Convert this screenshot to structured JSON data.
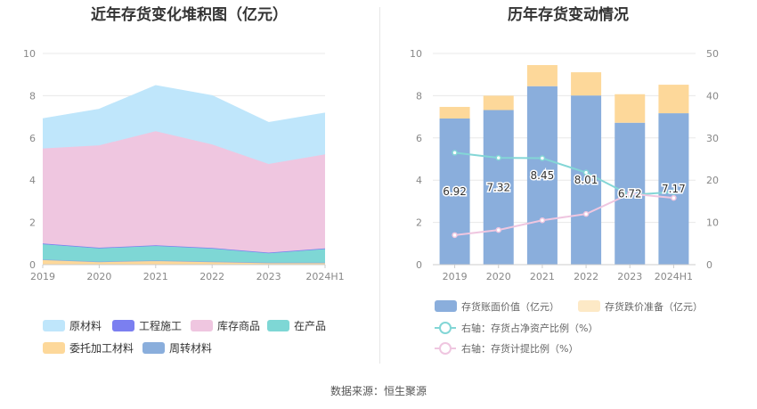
{
  "titles": {
    "left": "近年存货变化堆积图（亿元）",
    "right": "历年存货变动情况"
  },
  "source": "数据来源：恒生聚源",
  "chart_data": [
    {
      "type": "area",
      "stacked": true,
      "title": "近年存货变化堆积图（亿元）",
      "categories": [
        "2019",
        "2020",
        "2021",
        "2022",
        "2023",
        "2024H1"
      ],
      "ylim": [
        0,
        10
      ],
      "yticks": [
        "0",
        "2",
        "4",
        "6",
        "8",
        "10"
      ],
      "grid": true,
      "legend_position": "bottom",
      "series": [
        {
          "name": "委托加工材料",
          "color": "#fdd89a",
          "values": [
            0.25,
            0.15,
            0.2,
            0.15,
            0.1,
            0.1
          ]
        },
        {
          "name": "周转材料",
          "color": "#8aaedc",
          "values": [
            0,
            0,
            0,
            0,
            0,
            0
          ]
        },
        {
          "name": "在产品",
          "color": "#7ed7d5",
          "values": [
            0.72,
            0.63,
            0.7,
            0.62,
            0.45,
            0.65
          ]
        },
        {
          "name": "工程施工",
          "color": "#7b7ff0",
          "values": [
            0.03,
            0.02,
            0.02,
            0.02,
            0.02,
            0.02
          ]
        },
        {
          "name": "库存商品",
          "color": "#efc6e0",
          "values": [
            4.5,
            4.85,
            5.4,
            4.9,
            4.2,
            4.45
          ]
        },
        {
          "name": "原材料",
          "color": "#bfe6fb",
          "values": [
            1.4,
            1.7,
            2.15,
            2.3,
            1.95,
            1.95
          ]
        }
      ],
      "legend_order": [
        "原材料",
        "工程施工",
        "库存商品",
        "在产品",
        "委托加工材料",
        "周转材料"
      ]
    },
    {
      "type": "bar",
      "stacked": true,
      "title": "历年存货变动情况",
      "categories": [
        "2019",
        "2020",
        "2021",
        "2022",
        "2023",
        "2024H1"
      ],
      "ylim": [
        0,
        10
      ],
      "yticks": [
        "0",
        "2",
        "4",
        "6",
        "8",
        "10"
      ],
      "y2lim": [
        0,
        50
      ],
      "y2ticks": [
        "0",
        "10",
        "20",
        "30",
        "40",
        "50"
      ],
      "grid": true,
      "legend_position": "bottom",
      "series": [
        {
          "name": "存货账面价值（亿元）",
          "axis": "left",
          "color": "#8aaedc",
          "values": [
            6.92,
            7.32,
            8.45,
            8.01,
            6.72,
            7.17
          ],
          "labels": [
            "6.92",
            "7.32",
            "8.45",
            "8.01",
            "6.72",
            "7.17"
          ]
        },
        {
          "name": "存货跌价准备（亿元）",
          "axis": "left",
          "color": "#fdd89a",
          "values": [
            0.55,
            0.68,
            1.0,
            1.1,
            1.35,
            1.35
          ]
        },
        {
          "name": "右轴：存货占净资产比例（%）",
          "axis": "right",
          "type": "line",
          "color": "#83d6d6",
          "values": [
            26.5,
            25.3,
            25.2,
            21.8,
            16.5,
            17.2
          ]
        },
        {
          "name": "右轴：存货计提比例（%）",
          "axis": "right",
          "type": "line",
          "color": "#efc6e0",
          "values": [
            7.0,
            8.2,
            10.5,
            12.0,
            16.8,
            15.8
          ]
        }
      ]
    }
  ]
}
